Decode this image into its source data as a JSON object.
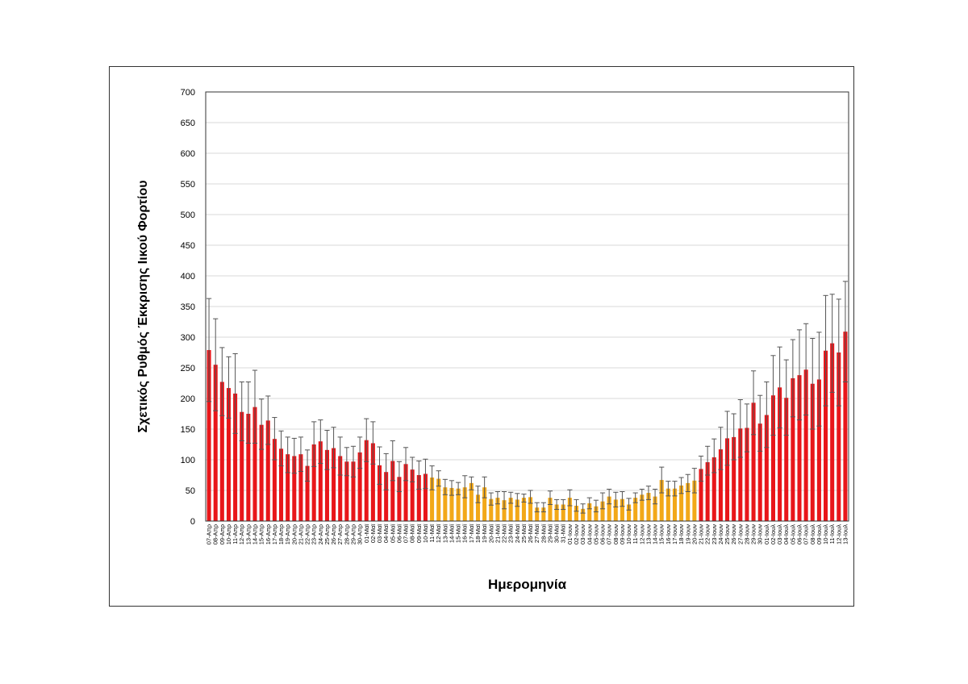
{
  "chart_data": {
    "type": "bar",
    "title": "",
    "xlabel": "Ημερομηνία",
    "ylabel": "Σχετικός Ρυθμός Έκκρισης Ιικού Φορτίου",
    "ylim": [
      0,
      700
    ],
    "yticks": [
      0,
      50,
      100,
      150,
      200,
      250,
      300,
      350,
      400,
      450,
      500,
      550,
      600,
      650,
      700
    ],
    "grid": true,
    "legend": "none",
    "colors": {
      "high": "#e8161a",
      "low": "#f2a818",
      "error_bar": "#555555",
      "grid": "#d9d9d9"
    },
    "categories": [
      "07-Απρ",
      "08-Απρ",
      "09-Απρ",
      "10-Απρ",
      "11-Απρ",
      "12-Απρ",
      "13-Απρ",
      "14-Απρ",
      "15-Απρ",
      "16-Απρ",
      "17-Απρ",
      "18-Απρ",
      "19-Απρ",
      "20-Απρ",
      "21-Απρ",
      "22-Απρ",
      "23-Απρ",
      "24-Απρ",
      "25-Απρ",
      "26-Απρ",
      "27-Απρ",
      "28-Απρ",
      "29-Απρ",
      "30-Απρ",
      "01-Μαϊ",
      "02-Μαϊ",
      "03-Μαϊ",
      "04-Μαϊ",
      "05-Μαϊ",
      "06-Μαϊ",
      "07-Μαϊ",
      "08-Μαϊ",
      "09-Μαϊ",
      "10-Μαϊ",
      "11-Μαϊ",
      "12-Μαϊ",
      "13-Μαϊ",
      "14-Μαϊ",
      "15-Μαϊ",
      "16-Μαϊ",
      "17-Μαϊ",
      "18-Μαϊ",
      "19-Μαϊ",
      "20-Μαϊ",
      "21-Μαϊ",
      "22-Μαϊ",
      "23-Μαϊ",
      "24-Μαϊ",
      "25-Μαϊ",
      "26-Μαϊ",
      "27-Μαϊ",
      "28-Μαϊ",
      "29-Μαϊ",
      "30-Μαϊ",
      "31-Μαϊ",
      "01-Ιουν",
      "02-Ιουν",
      "03-Ιουν",
      "04-Ιουν",
      "05-Ιουν",
      "06-Ιουν",
      "07-Ιουν",
      "08-Ιουν",
      "09-Ιουν",
      "10-Ιουν",
      "11-Ιουν",
      "12-Ιουν",
      "13-Ιουν",
      "14-Ιουν",
      "15-Ιουν",
      "16-Ιουν",
      "17-Ιουν",
      "18-Ιουν",
      "19-Ιουν",
      "20-Ιουν",
      "21-Ιουν",
      "22-Ιουν",
      "23-Ιουν",
      "24-Ιουν",
      "25-Ιουν",
      "26-Ιουν",
      "27-Ιουν",
      "28-Ιουν",
      "29-Ιουν",
      "30-Ιουν",
      "01-Ιουλ",
      "02-Ιουλ",
      "03-Ιουλ",
      "04-Ιουλ",
      "05-Ιουλ",
      "06-Ιουλ",
      "07-Ιουλ",
      "08-Ιουλ",
      "09-Ιουλ",
      "10-Ιουλ",
      "11-Ιουλ",
      "12-Ιουλ",
      "13-Ιουλ"
    ],
    "values": [
      279,
      255,
      227,
      217,
      208,
      178,
      175,
      186,
      157,
      164,
      134,
      118,
      109,
      106,
      109,
      90,
      125,
      130,
      116,
      119,
      106,
      97,
      97,
      112,
      132,
      127,
      91,
      80,
      98,
      72,
      93,
      84,
      75,
      77,
      71,
      69,
      55,
      54,
      53,
      55,
      62,
      43,
      55,
      36,
      38,
      34,
      38,
      35,
      38,
      39,
      22,
      22,
      38,
      27,
      27,
      38,
      25,
      20,
      29,
      24,
      32,
      40,
      35,
      36,
      27,
      38,
      43,
      46,
      40,
      67,
      53,
      53,
      58,
      62,
      66,
      85,
      96,
      104,
      117,
      135,
      137,
      151,
      152,
      193,
      159,
      173,
      205,
      218,
      201,
      233,
      238,
      247,
      224,
      231,
      278,
      290,
      275,
      309
    ],
    "error_upper": [
      363,
      330,
      283,
      268,
      273,
      227,
      227,
      246,
      199,
      204,
      169,
      147,
      137,
      135,
      137,
      116,
      162,
      165,
      148,
      153,
      137,
      120,
      122,
      137,
      167,
      162,
      121,
      110,
      131,
      97,
      120,
      104,
      98,
      101,
      90,
      82,
      68,
      66,
      63,
      74,
      72,
      57,
      72,
      46,
      48,
      48,
      47,
      45,
      44,
      50,
      30,
      30,
      49,
      35,
      35,
      51,
      35,
      28,
      38,
      34,
      46,
      52,
      47,
      48,
      37,
      46,
      52,
      57,
      52,
      88,
      65,
      65,
      71,
      76,
      86,
      106,
      122,
      134,
      153,
      179,
      175,
      198,
      191,
      245,
      205,
      227,
      270,
      284,
      263,
      296,
      312,
      322,
      298,
      308,
      368,
      370,
      362,
      391
    ],
    "error_lower": [
      195,
      180,
      172,
      168,
      143,
      131,
      127,
      127,
      117,
      125,
      100,
      90,
      79,
      78,
      81,
      65,
      89,
      94,
      84,
      87,
      75,
      74,
      72,
      86,
      97,
      93,
      60,
      51,
      66,
      48,
      66,
      64,
      52,
      53,
      51,
      57,
      43,
      42,
      43,
      38,
      51,
      30,
      38,
      26,
      28,
      20,
      29,
      24,
      31,
      29,
      15,
      15,
      27,
      19,
      19,
      25,
      16,
      13,
      20,
      15,
      20,
      28,
      23,
      24,
      18,
      30,
      34,
      35,
      28,
      46,
      41,
      41,
      45,
      48,
      46,
      65,
      75,
      79,
      84,
      91,
      100,
      104,
      113,
      141,
      114,
      120,
      140,
      152,
      140,
      170,
      165,
      173,
      150,
      155,
      188,
      210,
      188,
      227
    ],
    "color_groups": [
      "high",
      "high",
      "high",
      "high",
      "high",
      "high",
      "high",
      "high",
      "high",
      "high",
      "high",
      "high",
      "high",
      "high",
      "high",
      "high",
      "high",
      "high",
      "high",
      "high",
      "high",
      "high",
      "high",
      "high",
      "high",
      "high",
      "high",
      "high",
      "high",
      "high",
      "high",
      "high",
      "high",
      "high",
      "low",
      "low",
      "low",
      "low",
      "low",
      "low",
      "low",
      "low",
      "low",
      "low",
      "low",
      "low",
      "low",
      "low",
      "low",
      "low",
      "low",
      "low",
      "low",
      "low",
      "low",
      "low",
      "low",
      "low",
      "low",
      "low",
      "low",
      "low",
      "low",
      "low",
      "low",
      "low",
      "low",
      "low",
      "low",
      "low",
      "low",
      "low",
      "low",
      "low",
      "low",
      "high",
      "high",
      "high",
      "high",
      "high",
      "high",
      "high",
      "high",
      "high",
      "high",
      "high",
      "high",
      "high",
      "high",
      "high",
      "high",
      "high",
      "high",
      "high",
      "high",
      "high",
      "high",
      "high"
    ]
  }
}
